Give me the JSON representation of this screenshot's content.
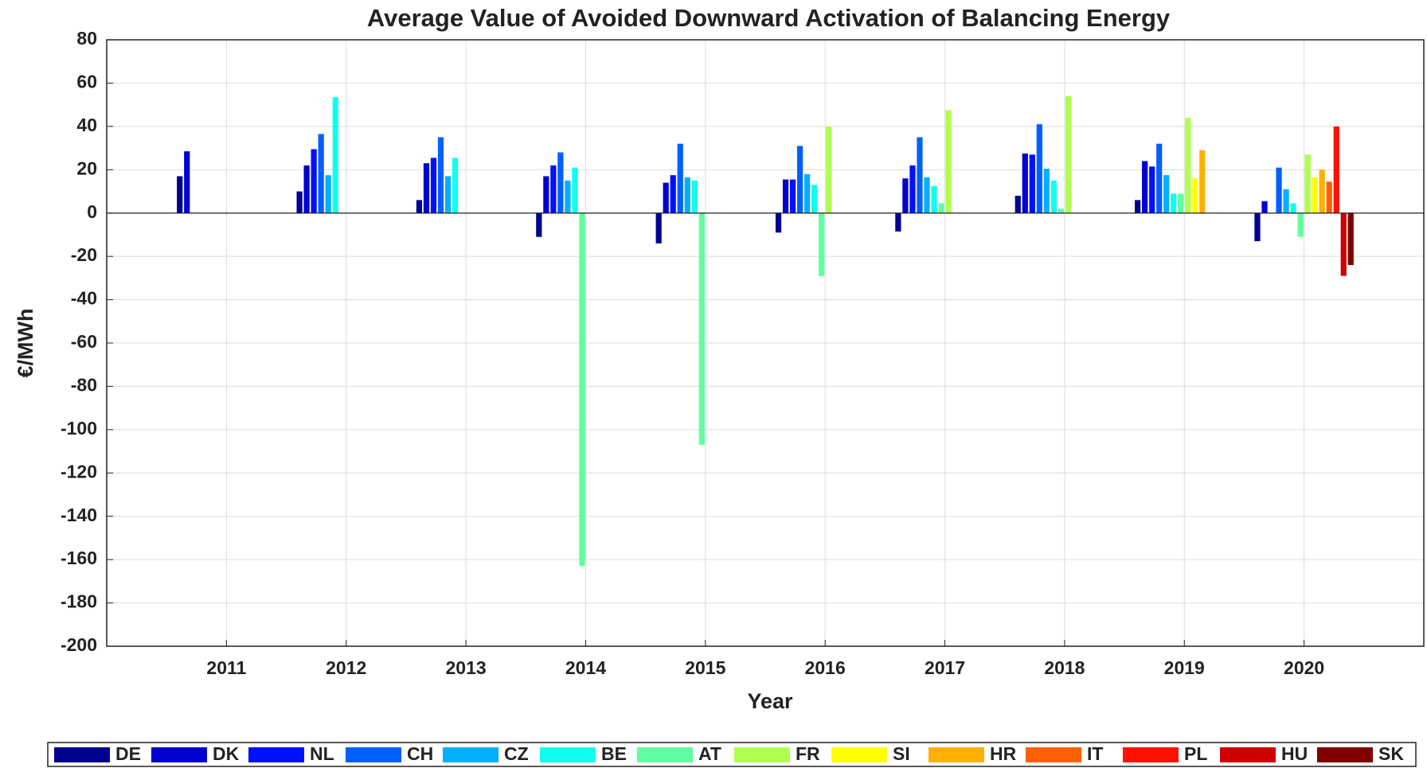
{
  "chart_data": {
    "type": "bar",
    "title": "Average Value of Avoided Downward Activation of Balancing Energy",
    "x_label": "Year",
    "y_label": "€/MWh",
    "x": [
      2011,
      2012,
      2013,
      2014,
      2015,
      2016,
      2017,
      2018,
      2019,
      2020
    ],
    "xlim": [
      2010,
      2021
    ],
    "xticks": [
      2011,
      2012,
      2013,
      2014,
      2015,
      2016,
      2017,
      2018,
      2019,
      2020
    ],
    "ylim": [
      -200,
      80
    ],
    "yticks": [
      80,
      60,
      40,
      20,
      0,
      -20,
      -40,
      -60,
      -80,
      -100,
      -120,
      -140,
      -160,
      -180,
      -200
    ],
    "grid": true,
    "legend": "bottom",
    "series": [
      {
        "name": "DE",
        "color": "#00008f",
        "values": [
          17,
          10,
          6,
          -11,
          -14,
          -9,
          -8.5,
          8,
          6,
          -13
        ]
      },
      {
        "name": "DK",
        "color": "#0000cf",
        "values": [
          28.5,
          22,
          23,
          17,
          14,
          15.5,
          16,
          27.5,
          24,
          5.5
        ]
      },
      {
        "name": "NL",
        "color": "#0010ff",
        "values": [
          null,
          29.5,
          25.5,
          22,
          17.5,
          15.5,
          22,
          27,
          21.5,
          null
        ]
      },
      {
        "name": "CH",
        "color": "#0060ff",
        "values": [
          null,
          36.5,
          35,
          28,
          32,
          31,
          35,
          41,
          32,
          21
        ]
      },
      {
        "name": "CZ",
        "color": "#00b0ff",
        "values": [
          null,
          17.5,
          17,
          15,
          16.5,
          18,
          16.5,
          20.5,
          17.5,
          11
        ]
      },
      {
        "name": "BE",
        "color": "#10ffef",
        "values": [
          null,
          53.5,
          25.5,
          21,
          15,
          13,
          12.5,
          15,
          9,
          4.5
        ]
      },
      {
        "name": "AT",
        "color": "#60ff9f",
        "values": [
          null,
          null,
          null,
          -163,
          -107,
          -29,
          4.5,
          2,
          9,
          -11
        ]
      },
      {
        "name": "FR",
        "color": "#afff50",
        "values": [
          null,
          null,
          null,
          null,
          null,
          40,
          47.5,
          54,
          44,
          27
        ]
      },
      {
        "name": "SI",
        "color": "#ffff00",
        "values": [
          null,
          null,
          null,
          null,
          null,
          null,
          null,
          null,
          16,
          16.5
        ]
      },
      {
        "name": "HR",
        "color": "#ffaf00",
        "values": [
          null,
          null,
          null,
          null,
          null,
          null,
          null,
          null,
          29,
          20
        ]
      },
      {
        "name": "IT",
        "color": "#ff6000",
        "values": [
          null,
          null,
          null,
          null,
          null,
          null,
          null,
          null,
          null,
          14.5
        ]
      },
      {
        "name": "PL",
        "color": "#ff1000",
        "values": [
          null,
          null,
          null,
          null,
          null,
          null,
          null,
          null,
          null,
          40
        ]
      },
      {
        "name": "HU",
        "color": "#cf0000",
        "values": [
          null,
          null,
          null,
          null,
          null,
          null,
          null,
          null,
          null,
          -29
        ]
      },
      {
        "name": "SK",
        "color": "#800000",
        "values": [
          null,
          null,
          null,
          null,
          null,
          null,
          null,
          null,
          null,
          -24
        ]
      }
    ]
  }
}
